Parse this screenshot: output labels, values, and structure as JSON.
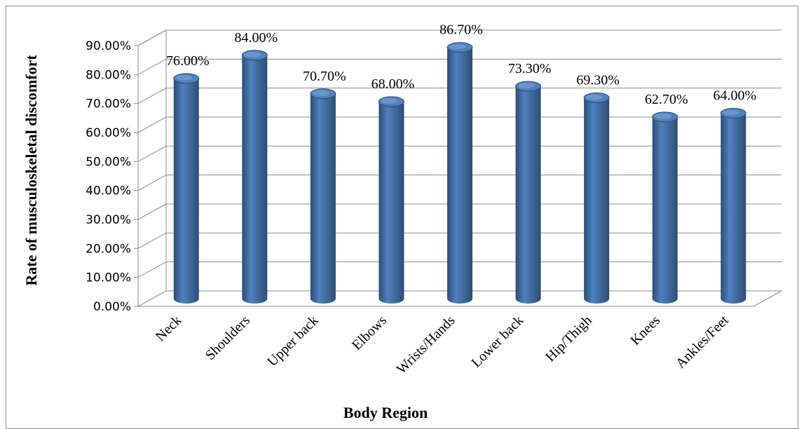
{
  "chart_data": {
    "type": "bar",
    "title": "",
    "xlabel": "Body Region",
    "ylabel": "Rate of musculoskeletal discomfort",
    "categories": [
      "Neck",
      "Shoulders",
      "Upper back",
      "Elbows",
      "Wrists/Hands",
      "Lower back",
      "Hip/Thigh",
      "Knees",
      "Ankles/Feet"
    ],
    "values": [
      76.0,
      84.0,
      70.7,
      68.0,
      86.7,
      73.3,
      69.3,
      62.7,
      64.0
    ],
    "value_labels": [
      "76.00%",
      "84.00%",
      "70.70%",
      "68.00%",
      "86.70%",
      "73.30%",
      "69.30%",
      "62.70%",
      "64.00%"
    ],
    "ylim": [
      0,
      90
    ],
    "yticks": [
      0,
      10,
      20,
      30,
      40,
      50,
      60,
      70,
      80,
      90
    ],
    "ytick_labels": [
      "0.00%",
      "10.00%",
      "20.00%",
      "30.00%",
      "40.00%",
      "50.00%",
      "60.00%",
      "70.00%",
      "80.00%",
      "90.00%"
    ],
    "grid": true,
    "legend": "none",
    "style": "3d-cylinder",
    "colors": {
      "bar": "#4f81bd",
      "bar_dark": "#2c4d75",
      "bar_light": "#9bbbe3",
      "grid": "#8c8c8c"
    }
  }
}
